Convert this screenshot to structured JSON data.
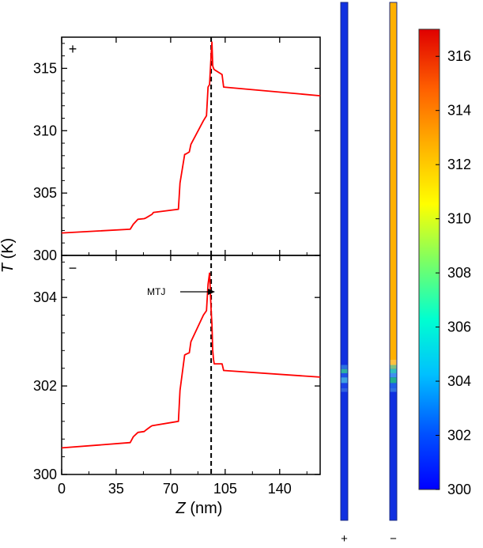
{
  "chart_data": [
    {
      "type": "line",
      "panel_symbol": "+",
      "xlim": [
        0,
        166
      ],
      "ylim": [
        300,
        317.5
      ],
      "x_ticks": [
        0,
        35,
        70,
        105,
        140
      ],
      "x_tick_labels": [
        "0",
        "35",
        "70",
        "105",
        "140"
      ],
      "y_ticks": [
        300,
        305,
        310,
        315
      ],
      "y_tick_labels": [
        "300",
        "305",
        "310",
        "315"
      ],
      "dashed_line_x": 96,
      "series": [
        {
          "color": "#ff0000",
          "x": [
            0,
            44,
            46,
            49,
            53,
            54,
            58,
            59,
            75,
            76,
            79,
            80,
            82,
            83,
            91,
            93,
            94,
            95,
            96,
            96.5,
            97,
            97.5,
            98,
            103,
            104,
            166
          ],
          "y": [
            301.8,
            302.1,
            302.5,
            302.9,
            302.95,
            303.0,
            303.3,
            303.45,
            303.7,
            305.8,
            308.1,
            308.15,
            308.3,
            308.9,
            310.8,
            311.2,
            313.5,
            313.7,
            316.1,
            317.1,
            315.2,
            315.0,
            314.9,
            314.5,
            313.5,
            312.8
          ]
        }
      ]
    },
    {
      "type": "line",
      "panel_symbol": "−",
      "xlim": [
        0,
        166
      ],
      "ylim": [
        300,
        304.95
      ],
      "x_ticks": [
        0,
        35,
        70,
        105,
        140
      ],
      "x_tick_labels": [
        "0",
        "35",
        "70",
        "105",
        "140"
      ],
      "y_ticks": [
        300,
        302,
        304
      ],
      "y_tick_labels": [
        "300",
        "302",
        "304"
      ],
      "dashed_line_x": 96,
      "annotation": {
        "text": "MTJ",
        "x": 92,
        "y": 304.3
      },
      "series": [
        {
          "color": "#ff0000",
          "x": [
            0,
            44,
            46,
            49,
            53,
            54,
            57,
            58,
            75,
            76,
            79,
            80,
            82,
            83,
            91,
            93,
            94,
            95,
            96,
            96.5,
            97,
            97.5,
            98,
            103,
            104,
            166
          ],
          "y": [
            300.6,
            300.72,
            300.85,
            300.95,
            300.97,
            301.0,
            301.08,
            301.1,
            301.2,
            301.9,
            302.7,
            302.72,
            302.75,
            303.0,
            303.6,
            303.7,
            304.3,
            304.55,
            303.7,
            303.4,
            302.8,
            302.6,
            302.5,
            302.5,
            302.35,
            302.2
          ]
        }
      ]
    },
    {
      "type": "heatmap",
      "colorbar_range": [
        300,
        317
      ],
      "colorbar_ticks": [
        300,
        302,
        304,
        306,
        308,
        310,
        312,
        314,
        316
      ],
      "colorbar_tick_labels": [
        "300",
        "302",
        "304",
        "306",
        "308",
        "310",
        "312",
        "314",
        "316"
      ],
      "strips": [
        {
          "label": "+",
          "base_color": "#1030e0",
          "bands": [
            {
              "t": 0.7,
              "color": "#2a70e0"
            },
            {
              "t": 0.708,
              "color": "#30b0a0"
            },
            {
              "t": 0.716,
              "color": "#2050e8"
            },
            {
              "t": 0.724,
              "color": "#40a0e0"
            },
            {
              "t": 0.735,
              "color": "#1a40e8"
            },
            {
              "t": 0.745,
              "color": "#3060e0"
            },
            {
              "t": 0.752,
              "color": "#1030e0"
            }
          ]
        },
        {
          "label": "−",
          "base_color": "#1030e0",
          "top_color": "#ffb000",
          "top_end": 0.69,
          "bands": [
            {
              "t": 0.69,
              "color": "#ffc040"
            },
            {
              "t": 0.7,
              "color": "#80c080"
            },
            {
              "t": 0.708,
              "color": "#30c0c0"
            },
            {
              "t": 0.716,
              "color": "#4090f0"
            },
            {
              "t": 0.724,
              "color": "#20b090"
            },
            {
              "t": 0.735,
              "color": "#2060e8"
            },
            {
              "t": 0.745,
              "color": "#3070e0"
            },
            {
              "t": 0.752,
              "color": "#1030e0"
            }
          ]
        }
      ]
    }
  ],
  "labels": {
    "xlabel_italic": "Z",
    "xlabel_rest": " (nm)",
    "ylabel_italic": "T",
    "ylabel_rest": " (K)"
  }
}
